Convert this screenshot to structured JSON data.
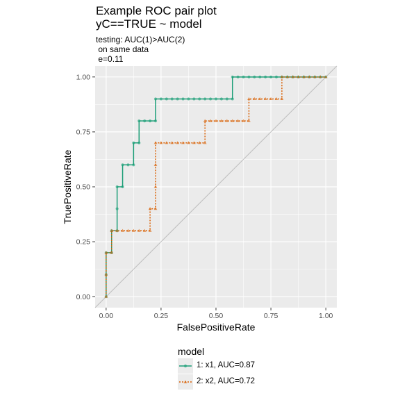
{
  "header": {
    "title_line1": "Example ROC pair plot",
    "title_line2": "yC==TRUE ~ model",
    "subtitle_line1": "testing: AUC(1)>AUC(2)",
    "subtitle_line2": " on same data",
    "subtitle_line3": " e=0.11"
  },
  "colors": {
    "series1": "#1b9e77",
    "series2": "#d95f02",
    "panel_bg": "#ebebeb",
    "grid": "#ffffff",
    "diagonal": "#bdbdbd"
  },
  "chart_data": {
    "type": "line",
    "xlabel": "FalsePositiveRate",
    "ylabel": "TruePositiveRate",
    "xlim": [
      -0.05,
      1.05
    ],
    "ylim": [
      -0.05,
      1.05
    ],
    "x_ticks": [
      "0.00",
      "0.25",
      "0.50",
      "0.75",
      "1.00"
    ],
    "y_ticks": [
      "0.00",
      "0.25",
      "0.50",
      "0.75",
      "1.00"
    ],
    "grid": true,
    "reference_line": "diagonal",
    "legend": {
      "title": "model",
      "position": "bottom",
      "entries": [
        "1: x1, AUC=0.87",
        "2: x2, AUC=0.72"
      ]
    },
    "series": [
      {
        "name": "1: x1, AUC=0.87",
        "line_style": "solid",
        "marker": "circle",
        "points": [
          [
            0,
            0
          ],
          [
            0,
            0.1
          ],
          [
            0,
            0.2
          ],
          [
            0.025,
            0.2
          ],
          [
            0.025,
            0.3
          ],
          [
            0.05,
            0.3
          ],
          [
            0.05,
            0.4
          ],
          [
            0.05,
            0.5
          ],
          [
            0.075,
            0.5
          ],
          [
            0.075,
            0.6
          ],
          [
            0.1,
            0.6
          ],
          [
            0.125,
            0.6
          ],
          [
            0.125,
            0.7
          ],
          [
            0.15,
            0.7
          ],
          [
            0.15,
            0.8
          ],
          [
            0.175,
            0.8
          ],
          [
            0.2,
            0.8
          ],
          [
            0.225,
            0.8
          ],
          [
            0.225,
            0.9
          ],
          [
            0.25,
            0.9
          ],
          [
            0.275,
            0.9
          ],
          [
            0.3,
            0.9
          ],
          [
            0.325,
            0.9
          ],
          [
            0.35,
            0.9
          ],
          [
            0.375,
            0.9
          ],
          [
            0.4,
            0.9
          ],
          [
            0.425,
            0.9
          ],
          [
            0.45,
            0.9
          ],
          [
            0.475,
            0.9
          ],
          [
            0.5,
            0.9
          ],
          [
            0.525,
            0.9
          ],
          [
            0.55,
            0.9
          ],
          [
            0.575,
            0.9
          ],
          [
            0.575,
            1.0
          ],
          [
            0.6,
            1.0
          ],
          [
            0.625,
            1.0
          ],
          [
            0.65,
            1.0
          ],
          [
            0.675,
            1.0
          ],
          [
            0.7,
            1.0
          ],
          [
            0.725,
            1.0
          ],
          [
            0.75,
            1.0
          ],
          [
            0.775,
            1.0
          ],
          [
            0.8,
            1.0
          ],
          [
            0.825,
            1.0
          ],
          [
            0.85,
            1.0
          ],
          [
            0.875,
            1.0
          ],
          [
            0.9,
            1.0
          ],
          [
            0.925,
            1.0
          ],
          [
            0.95,
            1.0
          ],
          [
            0.975,
            1.0
          ],
          [
            1.0,
            1.0
          ]
        ]
      },
      {
        "name": "2: x2, AUC=0.72",
        "line_style": "dotted",
        "marker": "triangle",
        "points": [
          [
            0,
            0
          ],
          [
            0,
            0.1
          ],
          [
            0,
            0.2
          ],
          [
            0.025,
            0.2
          ],
          [
            0.025,
            0.3
          ],
          [
            0.05,
            0.3
          ],
          [
            0.075,
            0.3
          ],
          [
            0.1,
            0.3
          ],
          [
            0.125,
            0.3
          ],
          [
            0.15,
            0.3
          ],
          [
            0.175,
            0.3
          ],
          [
            0.2,
            0.3
          ],
          [
            0.2,
            0.4
          ],
          [
            0.225,
            0.4
          ],
          [
            0.225,
            0.5
          ],
          [
            0.225,
            0.6
          ],
          [
            0.225,
            0.7
          ],
          [
            0.25,
            0.7
          ],
          [
            0.275,
            0.7
          ],
          [
            0.3,
            0.7
          ],
          [
            0.325,
            0.7
          ],
          [
            0.35,
            0.7
          ],
          [
            0.375,
            0.7
          ],
          [
            0.4,
            0.7
          ],
          [
            0.425,
            0.7
          ],
          [
            0.45,
            0.7
          ],
          [
            0.45,
            0.8
          ],
          [
            0.475,
            0.8
          ],
          [
            0.5,
            0.8
          ],
          [
            0.525,
            0.8
          ],
          [
            0.55,
            0.8
          ],
          [
            0.575,
            0.8
          ],
          [
            0.6,
            0.8
          ],
          [
            0.625,
            0.8
          ],
          [
            0.65,
            0.8
          ],
          [
            0.65,
            0.9
          ],
          [
            0.675,
            0.9
          ],
          [
            0.7,
            0.9
          ],
          [
            0.725,
            0.9
          ],
          [
            0.75,
            0.9
          ],
          [
            0.775,
            0.9
          ],
          [
            0.8,
            0.9
          ],
          [
            0.8,
            1.0
          ],
          [
            0.825,
            1.0
          ],
          [
            0.85,
            1.0
          ],
          [
            0.875,
            1.0
          ],
          [
            0.9,
            1.0
          ],
          [
            0.925,
            1.0
          ],
          [
            0.95,
            1.0
          ],
          [
            0.975,
            1.0
          ],
          [
            1.0,
            1.0
          ]
        ]
      }
    ]
  }
}
